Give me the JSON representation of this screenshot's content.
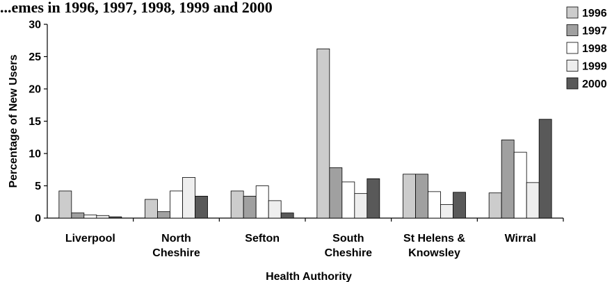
{
  "chart_data": {
    "type": "bar",
    "title": "...emes in 1996, 1997, 1998, 1999 and 2000",
    "xlabel": "Health Authority",
    "ylabel": "Percentage of New Users",
    "ylim": [
      0,
      30
    ],
    "yticks": [
      0,
      5,
      10,
      15,
      20,
      25,
      30
    ],
    "grid": false,
    "legend_position": "top-right",
    "categories": [
      [
        "Liverpool"
      ],
      [
        "North",
        "Cheshire"
      ],
      [
        "Sefton"
      ],
      [
        "South",
        "Cheshire"
      ],
      [
        "St Helens &",
        "Knowsley"
      ],
      [
        "Wirral"
      ]
    ],
    "series": [
      {
        "name": "1996",
        "color": "#cccccc",
        "values": [
          4.2,
          2.9,
          4.2,
          26.2,
          6.8,
          3.9
        ]
      },
      {
        "name": "1997",
        "color": "#a0a0a0",
        "values": [
          0.8,
          1.0,
          3.4,
          7.8,
          6.8,
          12.1
        ]
      },
      {
        "name": "1998",
        "color": "#ffffff",
        "values": [
          0.5,
          4.2,
          5.0,
          5.6,
          4.1,
          10.2
        ]
      },
      {
        "name": "1999",
        "color": "#eeeeee",
        "values": [
          0.4,
          6.3,
          2.7,
          3.8,
          2.1,
          5.5
        ]
      },
      {
        "name": "2000",
        "color": "#595959",
        "values": [
          0.2,
          3.4,
          0.8,
          6.1,
          4.0,
          15.3
        ]
      }
    ]
  }
}
